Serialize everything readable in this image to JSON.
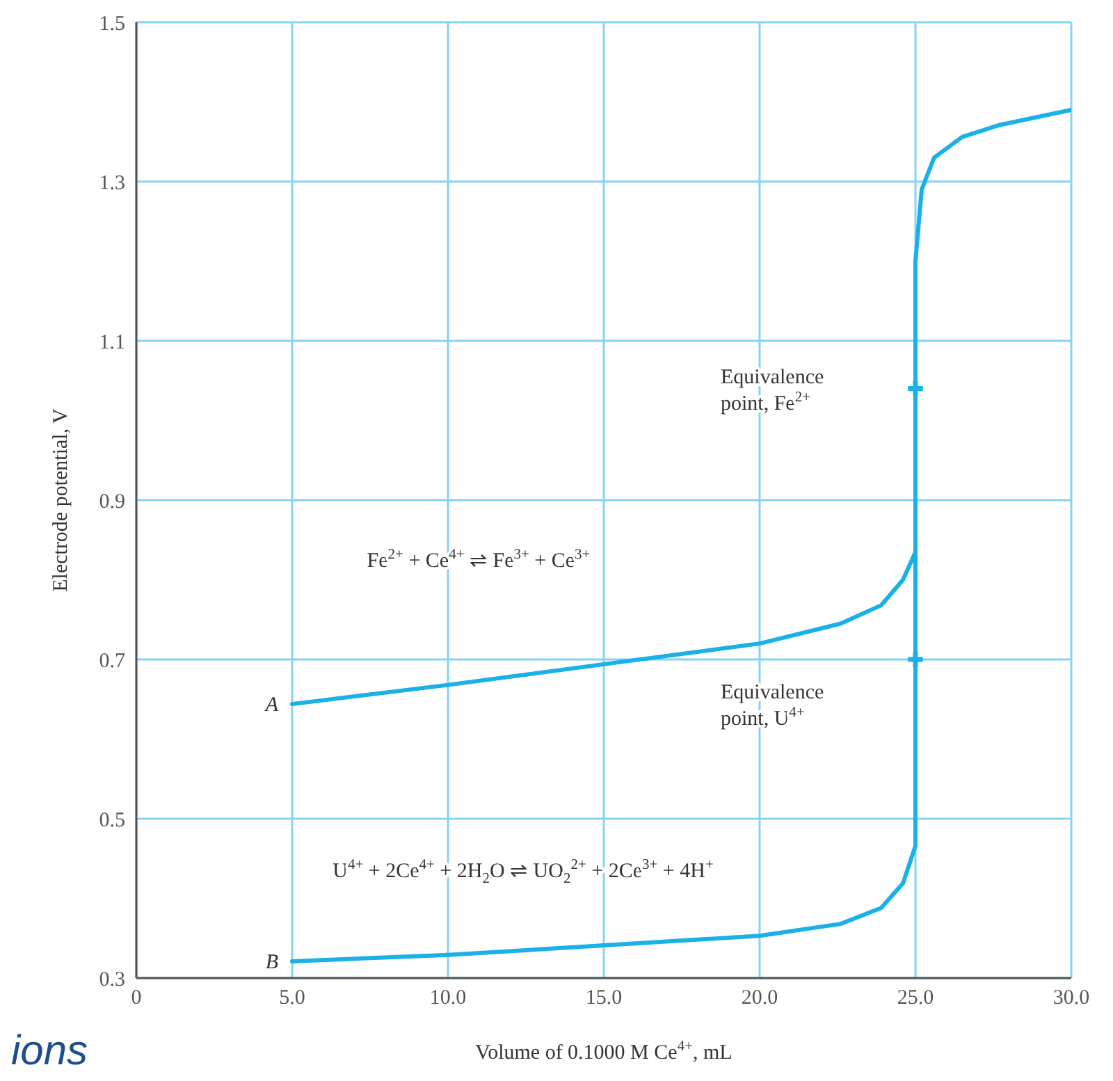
{
  "chart_data": {
    "type": "line",
    "xlabel": "Volume of 0.1000 M Ce$^{4+}$, mL",
    "ylabel": "Electrode potential, V",
    "xlim": [
      0,
      30
    ],
    "xticks": [
      0,
      {
        "value": 5,
        "label": "5.0"
      },
      {
        "value": 10,
        "label": "10.0"
      },
      {
        "value": 15,
        "label": "15.0"
      },
      {
        "value": 20,
        "label": "20.0"
      },
      {
        "value": 25,
        "label": "25.0"
      },
      {
        "value": 30,
        "label": "30.0"
      }
    ],
    "ylim": [
      0.3,
      1.5
    ],
    "yticks": [
      0.3,
      0.5,
      0.7,
      0.9,
      1.1,
      1.3,
      1.5
    ],
    "grid": true,
    "line_style": "solid",
    "series": [
      {
        "name": "A",
        "color": "#1ab0e8",
        "x": [
          5,
          10,
          15,
          20,
          22.6,
          23.9,
          24.6,
          25,
          25,
          25.2,
          25.6,
          26.5,
          27.7,
          30
        ],
        "values": [
          0.644,
          0.668,
          0.694,
          0.72,
          0.745,
          0.768,
          0.8,
          0.835,
          1.2,
          1.29,
          1.33,
          1.356,
          1.371,
          1.39
        ]
      },
      {
        "name": "B",
        "color": "#1ab0e8",
        "x": [
          5,
          10,
          15,
          20,
          22.6,
          23.9,
          24.6,
          25,
          25
        ],
        "values": [
          0.321,
          0.329,
          0.341,
          0.353,
          0.368,
          0.388,
          0.419,
          0.466,
          0.96
        ]
      },
      {
        "type": "scatter",
        "marker": "cross",
        "color": "#1ab0e8",
        "x": [
          25,
          25
        ],
        "values": [
          1.04,
          0.7
        ]
      }
    ],
    "annotations": [
      "Equivalence\npoint, Fe$^{2+}$",
      "Equivalence\npoint, U$^{4+}$",
      "Fe$^{2+}$ + Ce$^{4+}$ ⇌ Fe$^{3+}$ + Ce$^{3+}$",
      "U$^{4+}$ + 2Ce$^{4+}$ + 2H$_{2}$O ⇌ UO$_{2}$$^{2+}$ + 2Ce$^{3+}$ + 4H$^{+}$",
      "ions"
    ]
  }
}
